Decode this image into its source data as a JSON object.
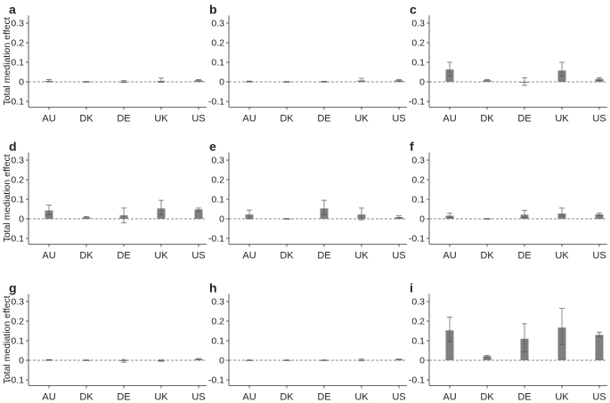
{
  "chart_data": [
    {
      "type": "bar",
      "panel": "a",
      "ylabel": "Total mediation effect",
      "categories": [
        "AU",
        "DK",
        "DE",
        "UK",
        "US"
      ],
      "yticks": [
        "0.3",
        "0.2",
        "0.1",
        "0",
        "-0.1"
      ],
      "ylim": [
        -0.12,
        0.33
      ],
      "values": [
        0.005,
        0.001,
        0.002,
        0.005,
        0.008
      ],
      "err_low": [
        0.005,
        0.001,
        0.005,
        0.008,
        0.004
      ],
      "err_high": [
        0.007,
        0.001,
        0.004,
        0.014,
        0.004
      ],
      "bar_color": "#7f7f7f"
    },
    {
      "type": "bar",
      "panel": "b",
      "ylabel": "",
      "categories": [
        "AU",
        "DK",
        "DE",
        "UK",
        "US"
      ],
      "yticks": [
        "0.3",
        "0.2",
        "0.1",
        "0",
        "-0.1"
      ],
      "ylim": [
        -0.12,
        0.33
      ],
      "values": [
        0.002,
        0.001,
        0.002,
        0.007,
        0.008
      ],
      "err_low": [
        0.002,
        0.001,
        0.002,
        0.006,
        0.004
      ],
      "err_high": [
        0.002,
        0.001,
        0.001,
        0.011,
        0.004
      ],
      "bar_color": "#7f7f7f"
    },
    {
      "type": "bar",
      "panel": "c",
      "ylabel": "",
      "categories": [
        "AU",
        "DK",
        "DE",
        "UK",
        "US"
      ],
      "yticks": [
        "0.3",
        "0.2",
        "0.1",
        "0",
        "-0.1"
      ],
      "ylim": [
        -0.12,
        0.33
      ],
      "values": [
        0.063,
        0.008,
        -0.003,
        0.058,
        0.015
      ],
      "err_low": [
        0.033,
        0.003,
        0.015,
        0.028,
        0.007
      ],
      "err_high": [
        0.037,
        0.004,
        0.023,
        0.042,
        0.006
      ],
      "bar_color": "#7f7f7f"
    },
    {
      "type": "bar",
      "panel": "d",
      "ylabel": "Total mediation effect",
      "categories": [
        "AU",
        "DK",
        "DE",
        "UK",
        "US"
      ],
      "yticks": [
        "0.3",
        "0.2",
        "0.1",
        "0",
        "-0.1"
      ],
      "ylim": [
        -0.12,
        0.33
      ],
      "values": [
        0.043,
        0.008,
        0.018,
        0.053,
        0.048
      ],
      "err_low": [
        0.023,
        0.004,
        0.038,
        0.033,
        0.008
      ],
      "err_high": [
        0.027,
        0.004,
        0.037,
        0.042,
        0.007
      ],
      "bar_color": "#7f7f7f"
    },
    {
      "type": "bar",
      "panel": "e",
      "ylabel": "",
      "categories": [
        "AU",
        "DK",
        "DE",
        "UK",
        "US"
      ],
      "yticks": [
        "0.3",
        "0.2",
        "0.1",
        "0",
        "-0.1"
      ],
      "ylim": [
        -0.12,
        0.33
      ],
      "values": [
        0.022,
        0.001,
        0.053,
        0.022,
        0.009
      ],
      "err_low": [
        0.022,
        0.001,
        0.033,
        0.027,
        0.007
      ],
      "err_high": [
        0.023,
        0.001,
        0.042,
        0.033,
        0.006
      ],
      "bar_color": "#7f7f7f"
    },
    {
      "type": "bar",
      "panel": "f",
      "ylabel": "",
      "categories": [
        "AU",
        "DK",
        "DE",
        "UK",
        "US"
      ],
      "yticks": [
        "0.3",
        "0.2",
        "0.1",
        "0",
        "-0.1"
      ],
      "ylim": [
        -0.12,
        0.33
      ],
      "values": [
        0.016,
        0.001,
        0.021,
        0.027,
        0.023
      ],
      "err_low": [
        0.008,
        0.001,
        0.013,
        0.013,
        0.006
      ],
      "err_high": [
        0.012,
        0.001,
        0.023,
        0.028,
        0.006
      ],
      "bar_color": "#7f7f7f"
    },
    {
      "type": "bar",
      "panel": "g",
      "ylabel": "Total mediation effect",
      "categories": [
        "AU",
        "DK",
        "DE",
        "UK",
        "US"
      ],
      "yticks": [
        "0.3",
        "0.2",
        "0.1",
        "0",
        "-0.1"
      ],
      "ylim": [
        -0.12,
        0.33
      ],
      "values": [
        0.002,
        0.001,
        -0.002,
        -0.002,
        0.006
      ],
      "err_low": [
        0.002,
        0.001,
        0.008,
        0.003,
        0.003
      ],
      "err_high": [
        0.002,
        0.001,
        0.006,
        0.004,
        0.003
      ],
      "bar_color": "#7f7f7f"
    },
    {
      "type": "bar",
      "panel": "h",
      "ylabel": "",
      "categories": [
        "AU",
        "DK",
        "DE",
        "UK",
        "US"
      ],
      "yticks": [
        "0.3",
        "0.2",
        "0.1",
        "0",
        "-0.1"
      ],
      "ylim": [
        -0.12,
        0.33
      ],
      "values": [
        0.001,
        0.001,
        0.001,
        0.002,
        0.004
      ],
      "err_low": [
        0.001,
        0.001,
        0.001,
        0.004,
        0.002
      ],
      "err_high": [
        0.001,
        0.001,
        0.001,
        0.004,
        0.002
      ],
      "bar_color": "#7f7f7f"
    },
    {
      "type": "bar",
      "panel": "i",
      "ylabel": "",
      "categories": [
        "AU",
        "DK",
        "DE",
        "UK",
        "US"
      ],
      "yticks": [
        "0.3",
        "0.2",
        "0.1",
        "0",
        "-0.1"
      ],
      "ylim": [
        -0.12,
        0.33
      ],
      "values": [
        0.153,
        0.021,
        0.11,
        0.167,
        0.13
      ],
      "err_low": [
        0.058,
        0.004,
        0.068,
        0.088,
        0.011
      ],
      "err_high": [
        0.067,
        0.004,
        0.077,
        0.098,
        0.014
      ],
      "bar_color": "#7f7f7f"
    }
  ]
}
